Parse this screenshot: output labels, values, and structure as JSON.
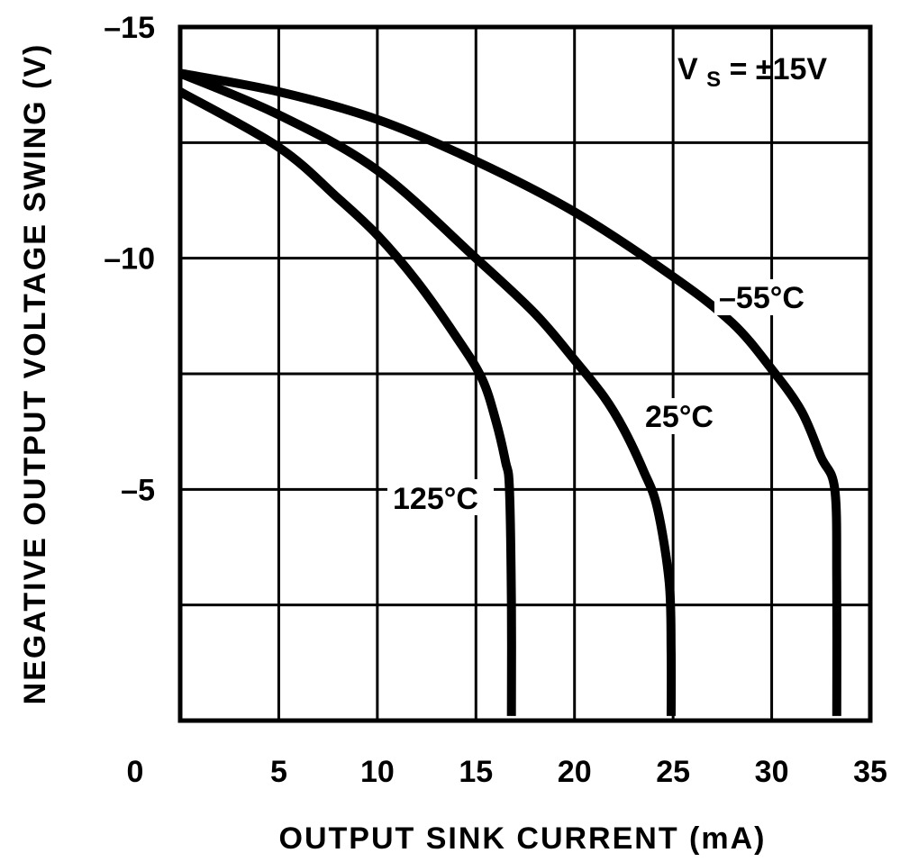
{
  "chart_data": {
    "type": "line",
    "title": "",
    "xlabel": "OUTPUT SINK CURRENT (mA)",
    "ylabel": "NEGATIVE OUTPUT VOLTAGE SWING (V)",
    "xlim": [
      0,
      35
    ],
    "ylim": [
      0,
      -15
    ],
    "x_ticks": [
      "0",
      "5",
      "10",
      "15",
      "20",
      "25",
      "30",
      "35"
    ],
    "y_ticks": [
      "-5",
      "-10",
      "-15"
    ],
    "grid": true,
    "condition": {
      "main": "V",
      "subscript": "S",
      "rest": " = ±15V"
    },
    "series": [
      {
        "name": "–55°C",
        "x": [
          0,
          5,
          10,
          15,
          20,
          25,
          28,
          30,
          31.5,
          32.5,
          33.2,
          33.3,
          33.3
        ],
        "y": [
          -14.0,
          -13.6,
          -13.0,
          -12.1,
          -11.0,
          -9.6,
          -8.6,
          -7.6,
          -6.7,
          -5.7,
          -5.0,
          -3.0,
          -0.1
        ]
      },
      {
        "name": "25°C",
        "x": [
          0,
          5,
          10,
          15,
          18,
          20,
          21.5,
          22.5,
          23.5,
          24.2,
          24.8,
          24.9,
          24.9
        ],
        "y": [
          -14.0,
          -13.1,
          -11.9,
          -10.0,
          -8.8,
          -7.8,
          -7.0,
          -6.3,
          -5.4,
          -4.6,
          -3.0,
          -1.5,
          -0.1
        ]
      },
      {
        "name": "125°C",
        "x": [
          0,
          5,
          8,
          10,
          12,
          14,
          15.3,
          16.0,
          16.5,
          16.7,
          16.8,
          16.8
        ],
        "y": [
          -13.6,
          -12.4,
          -11.3,
          -10.5,
          -9.5,
          -8.3,
          -7.4,
          -6.5,
          -5.6,
          -5.0,
          -2.5,
          -0.1
        ]
      }
    ],
    "labels": [
      "–55°C",
      "25°C",
      "125°C"
    ],
    "colors": {
      "line": "#000000",
      "background": "#ffffff"
    }
  }
}
